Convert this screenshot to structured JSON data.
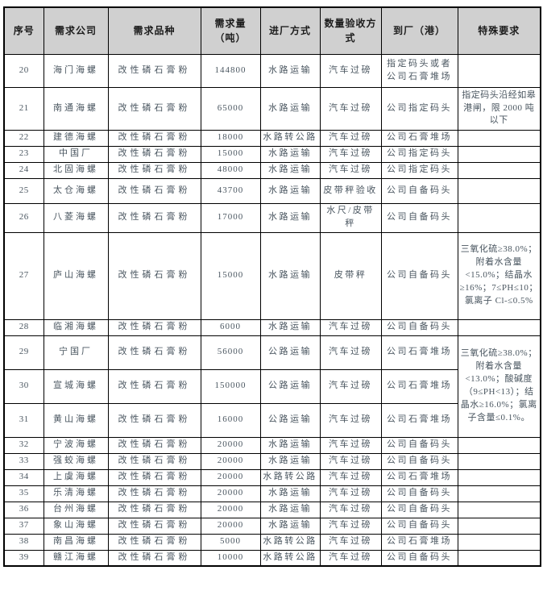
{
  "colors": {
    "header_bg": "#d0d0d0",
    "header_text": "#1c1c1c",
    "body_text": "#4a5660",
    "grid_line": "#000000"
  },
  "table": {
    "headers": [
      "序号",
      "需求公司",
      "需求品种",
      "需求量（吨）",
      "进厂方式",
      "数量验收方式",
      "到厂（港）",
      "特殊要求"
    ],
    "rows": [
      {
        "no": "20",
        "company": "海门海螺",
        "product": "改性磷石膏粉",
        "qty": "144800",
        "transport": "水路运输",
        "acceptance": "汽车过磅",
        "destination": "指定码头或者公司石膏堆场",
        "special": ""
      },
      {
        "no": "21",
        "company": "南通海螺",
        "product": "改性磷石膏粉",
        "qty": "65000",
        "transport": "水路运输",
        "acceptance": "汽车过磅",
        "destination": "公司指定码头",
        "special": "指定码头沿经如皋港闸，限 2000 吨以下"
      },
      {
        "no": "22",
        "company": "建德海螺",
        "product": "改性磷石膏粉",
        "qty": "18000",
        "transport": "水路转公路",
        "acceptance": "汽车过磅",
        "destination": "公司石膏堆场",
        "special": ""
      },
      {
        "no": "23",
        "company": "中国厂",
        "product": "改性磷石膏粉",
        "qty": "15000",
        "transport": "水路运输",
        "acceptance": "汽车过磅",
        "destination": "公司指定码头",
        "special": ""
      },
      {
        "no": "24",
        "company": "北固海螺",
        "product": "改性磷石膏粉",
        "qty": "48000",
        "transport": "水路运输",
        "acceptance": "汽车过磅",
        "destination": "公司指定码头",
        "special": ""
      },
      {
        "no": "25",
        "company": "太仓海螺",
        "product": "改性磷石膏粉",
        "qty": "43700",
        "transport": "水路运输",
        "acceptance": "皮带秤验收",
        "destination": "公司自备码头",
        "special": ""
      },
      {
        "no": "26",
        "company": "八菱海螺",
        "product": "改性磷石膏粉",
        "qty": "17000",
        "transport": "水路运输",
        "acceptance": "水尺/皮带秤",
        "destination": "公司自备码头",
        "special": ""
      },
      {
        "no": "27",
        "company": "庐山海螺",
        "product": "改性磷石膏粉",
        "qty": "15000",
        "transport": "水路运输",
        "acceptance": "皮带秤",
        "destination": "公司自备码头",
        "special": "三氧化硫≥38.0%；附着水含量<15.0%；结晶水≥16%；7≤PH≤10；氯离子 Cl-≤0.5%"
      },
      {
        "no": "28",
        "company": "临湘海螺",
        "product": "改性磷石膏粉",
        "qty": "6000",
        "transport": "水路运输",
        "acceptance": "汽车过磅",
        "destination": "公司自备码头",
        "special": ""
      },
      {
        "no": "29",
        "company": "宁国厂",
        "product": "改性磷石膏粉",
        "qty": "56000",
        "transport": "公路运输",
        "acceptance": "汽车过磅",
        "destination": "公司石膏堆场",
        "special": "三氧化硫≥38.0%；附着水含量<13.0%；酸碱度（9≤PH<13）；结晶水≥16.0%；氯离子含量≤0.1%。",
        "special_rowspan": 3
      },
      {
        "no": "30",
        "company": "宣城海螺",
        "product": "改性磷石膏粉",
        "qty": "150000",
        "transport": "公路运输",
        "acceptance": "汽车过磅",
        "destination": "公司石膏堆场",
        "special": null
      },
      {
        "no": "31",
        "company": "黄山海螺",
        "product": "改性磷石膏粉",
        "qty": "16000",
        "transport": "公路运输",
        "acceptance": "汽车过磅",
        "destination": "公司石膏堆场",
        "special": null
      },
      {
        "no": "32",
        "company": "宁波海螺",
        "product": "改性磷石膏粉",
        "qty": "20000",
        "transport": "水路运输",
        "acceptance": "汽车过磅",
        "destination": "公司自备码头",
        "special": ""
      },
      {
        "no": "33",
        "company": "强蛟海螺",
        "product": "改性磷石膏粉",
        "qty": "20000",
        "transport": "水路运输",
        "acceptance": "汽车过磅",
        "destination": "公司自备码头",
        "special": ""
      },
      {
        "no": "34",
        "company": "上虞海螺",
        "product": "改性磷石膏粉",
        "qty": "20000",
        "transport": "水路转公路",
        "acceptance": "汽车过磅",
        "destination": "公司石膏堆场",
        "special": ""
      },
      {
        "no": "35",
        "company": "乐清海螺",
        "product": "改性磷石膏粉",
        "qty": "20000",
        "transport": "水路运输",
        "acceptance": "汽车过磅",
        "destination": "公司自备码头",
        "special": ""
      },
      {
        "no": "36",
        "company": "台州海螺",
        "product": "改性磷石膏粉",
        "qty": "20000",
        "transport": "水路运输",
        "acceptance": "汽车过磅",
        "destination": "公司自备码头",
        "special": ""
      },
      {
        "no": "37",
        "company": "象山海螺",
        "product": "改性磷石膏粉",
        "qty": "20000",
        "transport": "水路运输",
        "acceptance": "汽车过磅",
        "destination": "公司自备码头",
        "special": ""
      },
      {
        "no": "38",
        "company": "南昌海螺",
        "product": "改性磷石膏粉",
        "qty": "5000",
        "transport": "水路转公路",
        "acceptance": "汽车过磅",
        "destination": "公司石膏堆场",
        "special": ""
      },
      {
        "no": "39",
        "company": "赣江海螺",
        "product": "改性磷石膏粉",
        "qty": "10000",
        "transport": "水路转公路",
        "acceptance": "汽车过磅",
        "destination": "公司自备码头",
        "special": ""
      }
    ]
  }
}
